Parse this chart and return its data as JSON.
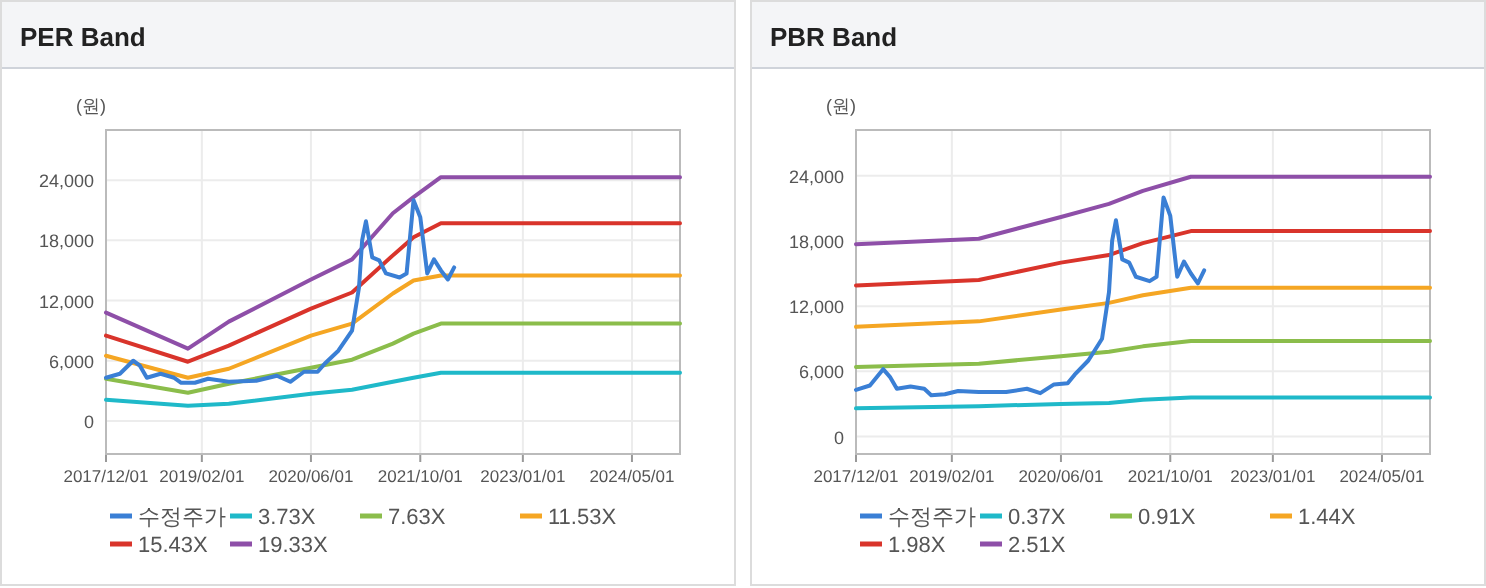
{
  "chart_data": [
    {
      "type": "line",
      "title": "PER Band",
      "ylabel": "(원)",
      "xlim": [
        "2017-12-01",
        "2024-12-01"
      ],
      "ylim": [
        -3300,
        29000
      ],
      "xticks": [
        {
          "value": "2017-12-01",
          "label": "2017/12/01"
        },
        {
          "value": "2019-02-01",
          "label": "2019/02/01"
        },
        {
          "value": "2020-06-01",
          "label": "2020/06/01"
        },
        {
          "value": "2021-10-01",
          "label": "2021/10/01"
        },
        {
          "value": "2023-01-01",
          "label": "2023/01/01"
        },
        {
          "value": "2024-05-01",
          "label": "2024/05/01"
        }
      ],
      "yticks": [
        0,
        {
          "value": 6000,
          "label": "6,000"
        },
        {
          "value": 12000,
          "label": "12,000"
        },
        {
          "value": 18000,
          "label": "18,000"
        },
        {
          "value": 24000,
          "label": "24,000"
        }
      ],
      "grid": true,
      "legend": "bottom",
      "marker": "none",
      "line_style": "solid",
      "series": [
        {
          "name": "수정주가",
          "color": "#3a7fd5",
          "x": [
            "2017-12-01",
            "2018-02-01",
            "2018-04-01",
            "2018-05-01",
            "2018-06-01",
            "2018-08-01",
            "2018-10-01",
            "2018-11-01",
            "2019-01-01",
            "2019-03-01",
            "2019-06-01",
            "2019-10-01",
            "2020-01-01",
            "2020-03-01",
            "2020-05-01",
            "2020-07-01",
            "2020-08-01",
            "2020-10-01",
            "2020-12-01",
            "2021-01-01",
            "2021-01-15",
            "2021-02-01",
            "2021-03-01",
            "2021-04-01",
            "2021-05-01",
            "2021-07-01",
            "2021-08-01",
            "2021-09-01",
            "2021-10-01",
            "2021-11-01",
            "2021-12-01",
            "2022-01-01",
            "2022-02-01",
            "2022-03-01"
          ],
          "values": [
            4300,
            4700,
            6000,
            5500,
            4300,
            4700,
            4300,
            3800,
            3800,
            4200,
            3900,
            4000,
            4500,
            3900,
            4900,
            4900,
            5700,
            7000,
            9000,
            13300,
            18000,
            19900,
            16300,
            16000,
            14700,
            14300,
            14700,
            22000,
            20300,
            14700,
            16100,
            15000,
            14100,
            15300
          ]
        },
        {
          "name": "3.73X",
          "color": "#1fb9c9",
          "x": [
            "2017-12-01",
            "2018-12-01",
            "2019-06-01",
            "2020-06-01",
            "2020-12-01",
            "2021-06-01",
            "2021-09-01",
            "2022-01-01",
            "2024-12-01"
          ],
          "values": [
            2100,
            1500,
            1700,
            2700,
            3100,
            3900,
            4300,
            4800,
            4800
          ]
        },
        {
          "name": "7.63X",
          "color": "#8bbd4b",
          "x": [
            "2017-12-01",
            "2018-12-01",
            "2019-06-01",
            "2020-06-01",
            "2020-12-01",
            "2021-06-01",
            "2021-09-01",
            "2022-01-01",
            "2024-12-01"
          ],
          "values": [
            4200,
            2800,
            3700,
            5300,
            6100,
            7700,
            8700,
            9700,
            9700
          ]
        },
        {
          "name": "11.53X",
          "color": "#f5a623",
          "x": [
            "2017-12-01",
            "2018-12-01",
            "2019-06-01",
            "2020-06-01",
            "2020-12-01",
            "2021-06-01",
            "2021-09-01",
            "2022-01-01",
            "2024-12-01"
          ],
          "values": [
            6500,
            4300,
            5200,
            8500,
            9700,
            12700,
            14000,
            14500,
            14500
          ]
        },
        {
          "name": "15.43X",
          "color": "#d9342b",
          "x": [
            "2017-12-01",
            "2018-12-01",
            "2019-06-01",
            "2020-06-01",
            "2020-12-01",
            "2021-06-01",
            "2021-09-01",
            "2022-01-01",
            "2024-12-01"
          ],
          "values": [
            8500,
            5900,
            7500,
            11200,
            12800,
            16500,
            18300,
            19700,
            19700
          ]
        },
        {
          "name": "19.33X",
          "color": "#8e4fa8",
          "x": [
            "2017-12-01",
            "2018-12-01",
            "2019-06-01",
            "2020-06-01",
            "2020-12-01",
            "2021-06-01",
            "2021-09-01",
            "2022-01-01",
            "2024-12-01"
          ],
          "values": [
            10800,
            7200,
            9900,
            14100,
            16100,
            20700,
            22300,
            24300,
            24300
          ]
        }
      ]
    },
    {
      "type": "line",
      "title": "PBR Band",
      "ylabel": "(원)",
      "xlim": [
        "2017-12-01",
        "2024-12-01"
      ],
      "ylim": [
        -1600,
        28200
      ],
      "xticks": [
        {
          "value": "2017-12-01",
          "label": "2017/12/01"
        },
        {
          "value": "2019-02-01",
          "label": "2019/02/01"
        },
        {
          "value": "2020-06-01",
          "label": "2020/06/01"
        },
        {
          "value": "2021-10-01",
          "label": "2021/10/01"
        },
        {
          "value": "2023-01-01",
          "label": "2023/01/01"
        },
        {
          "value": "2024-05-01",
          "label": "2024/05/01"
        }
      ],
      "yticks": [
        0,
        {
          "value": 6000,
          "label": "6,000"
        },
        {
          "value": 12000,
          "label": "12,000"
        },
        {
          "value": 18000,
          "label": "18,000"
        },
        {
          "value": 24000,
          "label": "24,000"
        }
      ],
      "grid": true,
      "legend": "bottom",
      "marker": "none",
      "line_style": "solid",
      "series": [
        {
          "name": "수정주가",
          "color": "#3a7fd5",
          "x": [
            "2017-12-01",
            "2018-02-01",
            "2018-04-01",
            "2018-05-01",
            "2018-06-01",
            "2018-08-01",
            "2018-10-01",
            "2018-11-01",
            "2019-01-01",
            "2019-03-01",
            "2019-06-01",
            "2019-10-01",
            "2020-01-01",
            "2020-03-01",
            "2020-05-01",
            "2020-07-01",
            "2020-08-01",
            "2020-10-01",
            "2020-12-01",
            "2021-01-01",
            "2021-01-15",
            "2021-02-01",
            "2021-03-01",
            "2021-04-01",
            "2021-05-01",
            "2021-07-01",
            "2021-08-01",
            "2021-09-01",
            "2021-10-01",
            "2021-11-01",
            "2021-12-01",
            "2022-01-01",
            "2022-02-01",
            "2022-03-01"
          ],
          "values": [
            4300,
            4700,
            6200,
            5500,
            4400,
            4600,
            4400,
            3800,
            3900,
            4200,
            4100,
            4100,
            4400,
            4000,
            4800,
            4900,
            5700,
            7000,
            9000,
            13300,
            18000,
            19900,
            16300,
            16000,
            14700,
            14300,
            14700,
            22000,
            20300,
            14700,
            16100,
            15000,
            14100,
            15300
          ]
        },
        {
          "name": "0.37X",
          "color": "#1fb9c9",
          "x": [
            "2017-12-01",
            "2019-06-01",
            "2020-06-01",
            "2021-01-01",
            "2021-06-01",
            "2022-01-01",
            "2024-12-01"
          ],
          "values": [
            2600,
            2800,
            3000,
            3100,
            3400,
            3600,
            3600
          ]
        },
        {
          "name": "0.91X",
          "color": "#8bbd4b",
          "x": [
            "2017-12-01",
            "2019-06-01",
            "2020-06-01",
            "2021-01-01",
            "2021-06-01",
            "2022-01-01",
            "2024-12-01"
          ],
          "values": [
            6400,
            6700,
            7400,
            7800,
            8300,
            8800,
            8800
          ]
        },
        {
          "name": "1.44X",
          "color": "#f5a623",
          "x": [
            "2017-12-01",
            "2019-06-01",
            "2020-06-01",
            "2021-01-01",
            "2021-06-01",
            "2022-01-01",
            "2024-12-01"
          ],
          "values": [
            10100,
            10600,
            11700,
            12300,
            13000,
            13700,
            13700
          ]
        },
        {
          "name": "1.98X",
          "color": "#d9342b",
          "x": [
            "2017-12-01",
            "2019-06-01",
            "2020-06-01",
            "2021-01-01",
            "2021-06-01",
            "2022-01-01",
            "2024-12-01"
          ],
          "values": [
            13900,
            14400,
            16000,
            16700,
            17800,
            18900,
            18900
          ]
        },
        {
          "name": "2.51X",
          "color": "#8e4fa8",
          "x": [
            "2017-12-01",
            "2019-06-01",
            "2020-06-01",
            "2021-01-01",
            "2021-06-01",
            "2022-01-01",
            "2024-12-01"
          ],
          "values": [
            17700,
            18200,
            20200,
            21400,
            22600,
            23900,
            23900
          ]
        }
      ]
    }
  ]
}
